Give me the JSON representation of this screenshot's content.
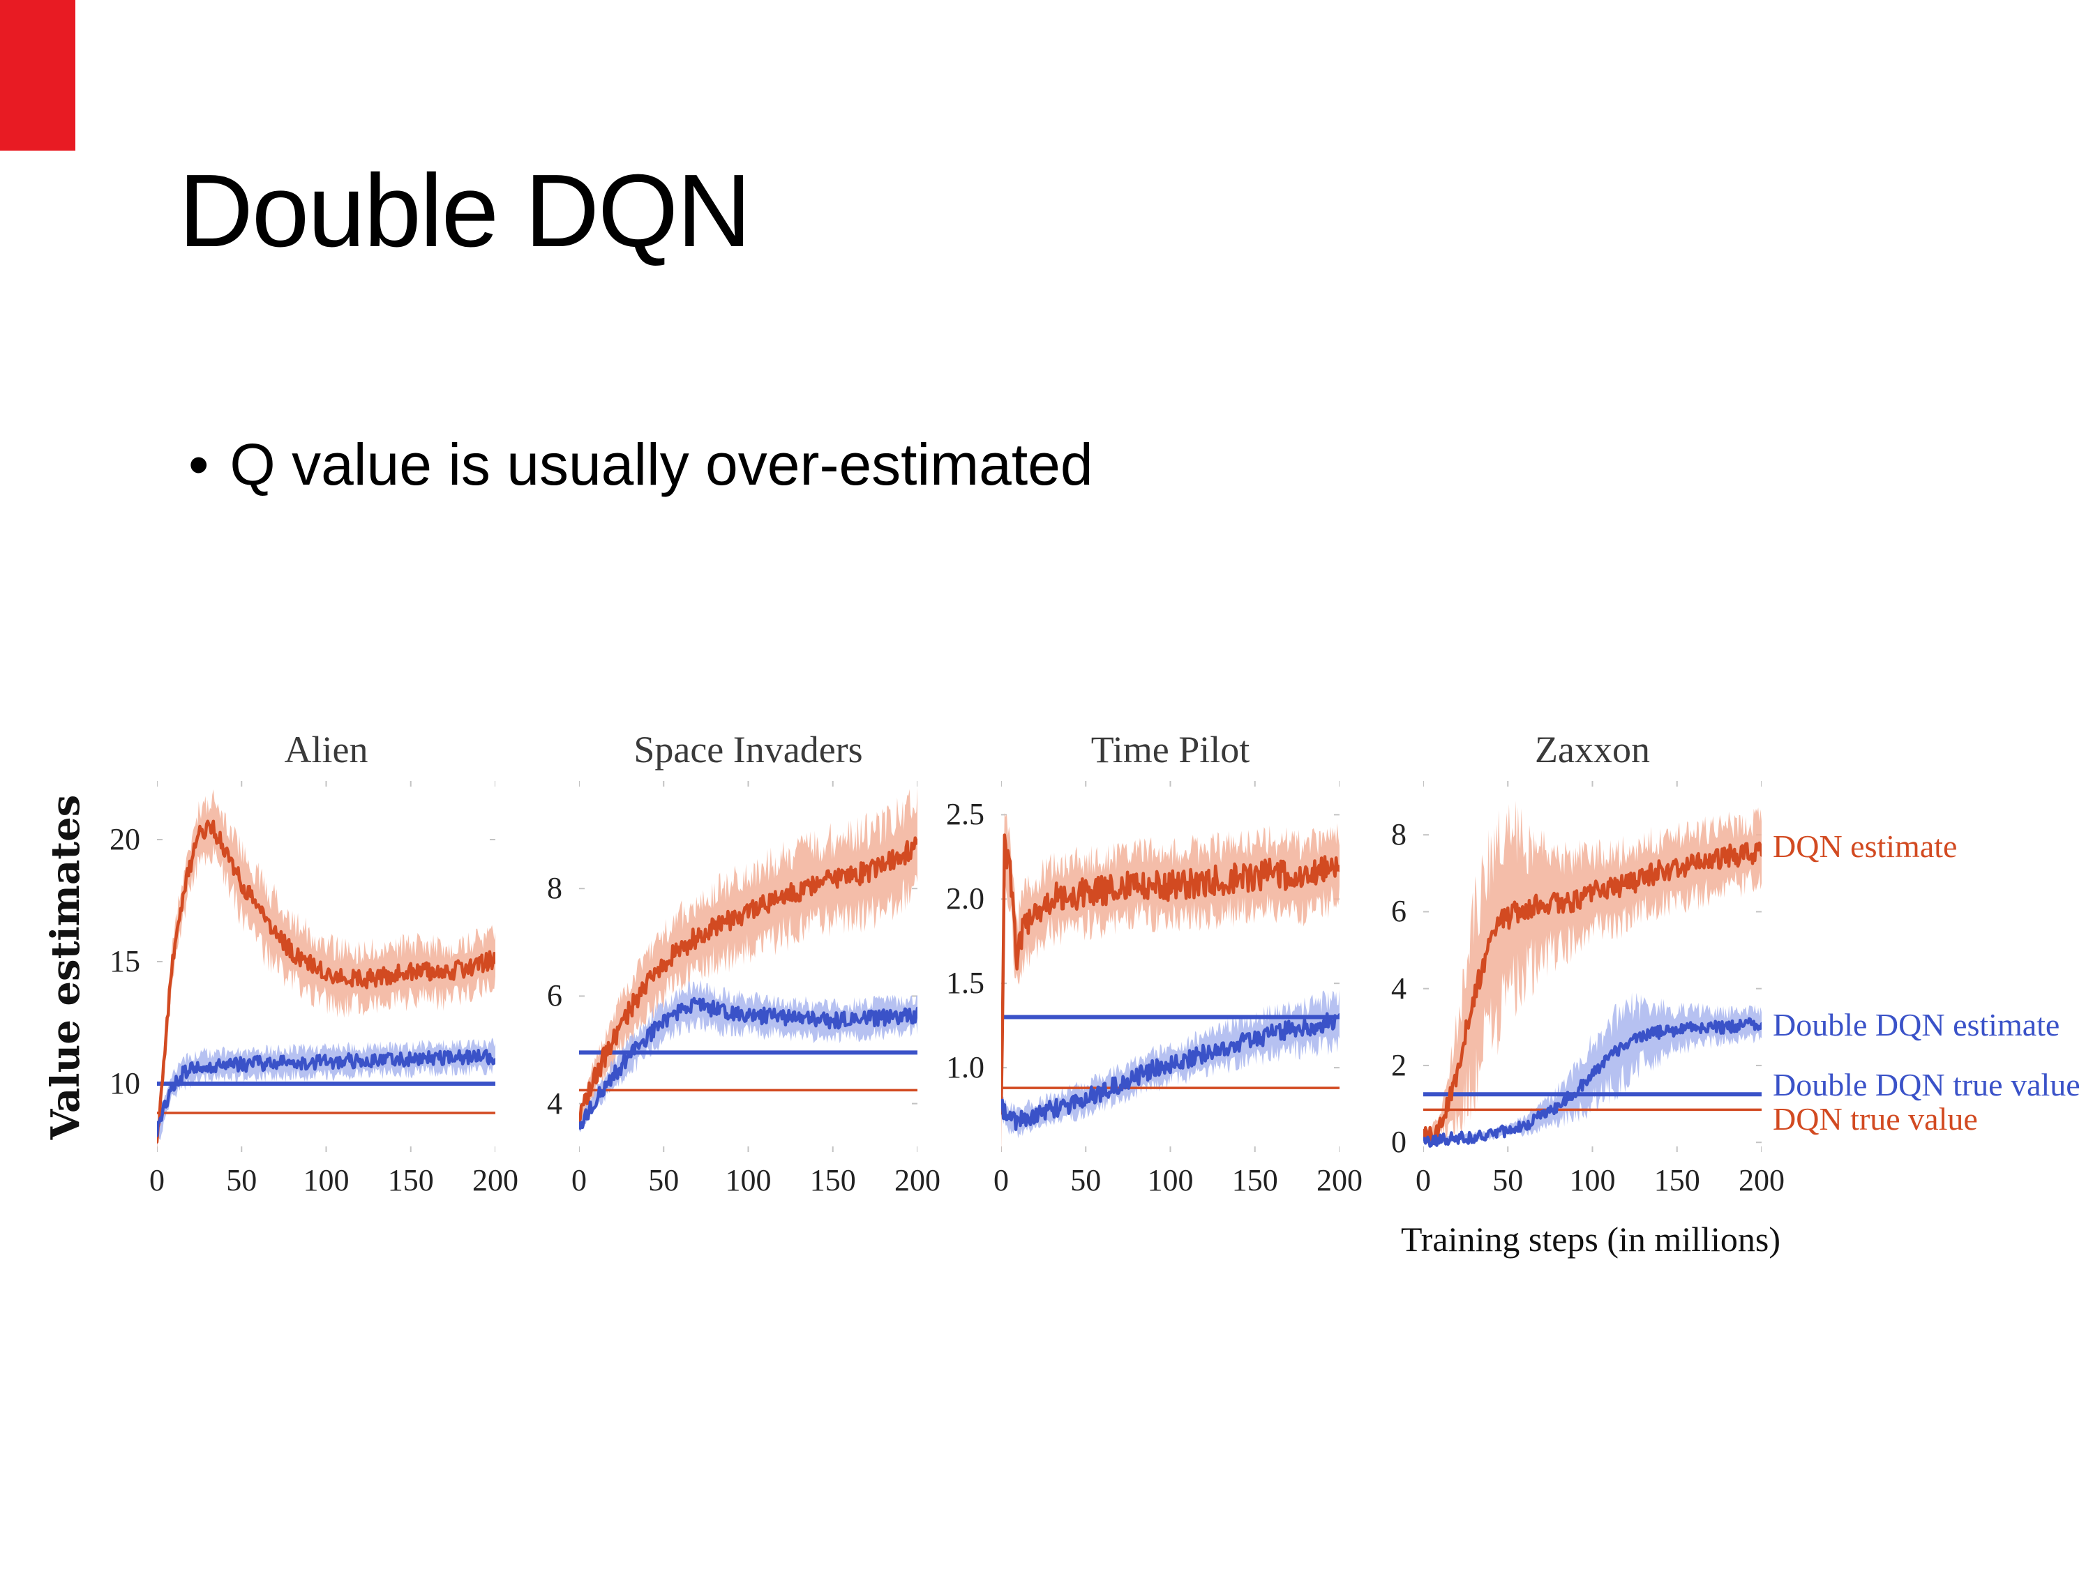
{
  "slide": {
    "title": "Double DQN",
    "bullet_glyph": "•",
    "bullet": "Q value is usually over-estimated",
    "accent_color": "#e81b23"
  },
  "figure": {
    "ylabel": "Value estimates",
    "xlabel": "Training steps (in millions)",
    "colors": {
      "dqn": "#d24a21",
      "ddqn": "#3a52c8",
      "dqn_band": "#f2b29a",
      "ddqn_band": "#a9b6ee",
      "tick": "#c3c3c3",
      "title_text": "#3a3a3a",
      "tick_text": "#222222"
    },
    "legend": [
      {
        "label": "DQN estimate",
        "color": "dqn",
        "anchor_value": 7.7
      },
      {
        "label": "Double DQN estimate",
        "color": "ddqn",
        "anchor_value": 3.05
      },
      {
        "label": "Double DQN true value",
        "color": "ddqn",
        "anchor_value": 1.5
      },
      {
        "label": "DQN true value",
        "color": "dqn",
        "anchor_value": 0.6
      }
    ]
  },
  "chart_data": [
    {
      "type": "line",
      "title": "Alien",
      "xlim": [
        0,
        200
      ],
      "ylim": [
        7.2,
        22.4
      ],
      "xticks": [
        0,
        50,
        100,
        150,
        200
      ],
      "ytick_values": [
        10,
        15,
        20
      ],
      "ytick_labels": [
        "10",
        "15",
        "20"
      ],
      "true_lines": [
        {
          "name": "DQN true value",
          "color": "dqn",
          "value": 8.8,
          "width": 3.5
        },
        {
          "name": "Double DQN true value",
          "color": "ddqn",
          "value": 10.0,
          "width": 6
        }
      ],
      "series": [
        {
          "name": "DQN estimate",
          "color": "dqn",
          "band_color": "dqn_band",
          "noise": 0.38,
          "seed": 11,
          "band": [
            [
              0,
              0.3
            ],
            [
              10,
              0.8
            ],
            [
              30,
              1.1
            ],
            [
              60,
              1.4
            ],
            [
              100,
              1.2
            ],
            [
              200,
              1.0
            ]
          ],
          "keypoints": [
            [
              0,
              7.6
            ],
            [
              4,
              11.0
            ],
            [
              10,
              15.5
            ],
            [
              18,
              18.5
            ],
            [
              25,
              20.2
            ],
            [
              32,
              20.6
            ],
            [
              40,
              19.6
            ],
            [
              50,
              18.2
            ],
            [
              65,
              16.6
            ],
            [
              80,
              15.4
            ],
            [
              95,
              14.7
            ],
            [
              110,
              14.3
            ],
            [
              125,
              14.3
            ],
            [
              140,
              14.5
            ],
            [
              155,
              14.6
            ],
            [
              170,
              14.5
            ],
            [
              185,
              14.8
            ],
            [
              200,
              15.1
            ]
          ]
        },
        {
          "name": "Double DQN estimate",
          "color": "ddqn",
          "band_color": "ddqn_band",
          "noise": 0.3,
          "seed": 12,
          "band": 0.55,
          "keypoints": [
            [
              0,
              8.0
            ],
            [
              8,
              9.8
            ],
            [
              15,
              10.4
            ],
            [
              25,
              10.7
            ],
            [
              50,
              10.8
            ],
            [
              100,
              10.9
            ],
            [
              150,
              11.0
            ],
            [
              200,
              11.1
            ]
          ]
        }
      ]
    },
    {
      "type": "line",
      "title": "Space Invaders",
      "xlim": [
        0,
        200
      ],
      "ylim": [
        3.1,
        10.0
      ],
      "xticks": [
        0,
        50,
        100,
        150,
        200
      ],
      "ytick_values": [
        4,
        6,
        8
      ],
      "ytick_labels": [
        "4",
        "6",
        "8"
      ],
      "true_lines": [
        {
          "name": "DQN true value",
          "color": "dqn",
          "value": 4.25,
          "width": 3.5
        },
        {
          "name": "Double DQN true value",
          "color": "ddqn",
          "value": 4.95,
          "width": 6
        }
      ],
      "series": [
        {
          "name": "DQN estimate",
          "color": "dqn",
          "band_color": "dqn_band",
          "noise": 0.2,
          "seed": 21,
          "band": [
            [
              0,
              0.15
            ],
            [
              20,
              0.45
            ],
            [
              50,
              0.6
            ],
            [
              100,
              0.7
            ],
            [
              150,
              0.75
            ],
            [
              200,
              0.8
            ]
          ],
          "keypoints": [
            [
              0,
              3.7
            ],
            [
              8,
              4.4
            ],
            [
              20,
              5.2
            ],
            [
              35,
              6.0
            ],
            [
              50,
              6.6
            ],
            [
              65,
              7.0
            ],
            [
              80,
              7.3
            ],
            [
              95,
              7.5
            ],
            [
              110,
              7.7
            ],
            [
              125,
              7.9
            ],
            [
              140,
              8.1
            ],
            [
              155,
              8.2
            ],
            [
              170,
              8.3
            ],
            [
              185,
              8.5
            ],
            [
              200,
              8.8
            ]
          ]
        },
        {
          "name": "Double DQN estimate",
          "color": "ddqn",
          "band_color": "ddqn_band",
          "noise": 0.15,
          "seed": 22,
          "band": [
            [
              0,
              0.12
            ],
            [
              30,
              0.3
            ],
            [
              60,
              0.35
            ],
            [
              120,
              0.3
            ],
            [
              200,
              0.3
            ]
          ],
          "keypoints": [
            [
              0,
              3.6
            ],
            [
              10,
              4.1
            ],
            [
              20,
              4.5
            ],
            [
              30,
              4.9
            ],
            [
              45,
              5.4
            ],
            [
              60,
              5.75
            ],
            [
              70,
              5.85
            ],
            [
              85,
              5.7
            ],
            [
              100,
              5.65
            ],
            [
              120,
              5.6
            ],
            [
              140,
              5.55
            ],
            [
              160,
              5.55
            ],
            [
              180,
              5.6
            ],
            [
              200,
              5.65
            ]
          ]
        }
      ]
    },
    {
      "type": "line",
      "title": "Time Pilot",
      "xlim": [
        0,
        200
      ],
      "ylim": [
        0.5,
        2.7
      ],
      "xticks": [
        0,
        50,
        100,
        150,
        200
      ],
      "ytick_values": [
        1.0,
        1.5,
        2.0,
        2.5
      ],
      "ytick_labels": [
        "1.0",
        "1.5",
        "2.0",
        "2.5"
      ],
      "true_lines": [
        {
          "name": "DQN true value",
          "color": "dqn",
          "value": 0.88,
          "width": 3.5
        },
        {
          "name": "Double DQN true value",
          "color": "ddqn",
          "value": 1.3,
          "width": 6
        }
      ],
      "series": [
        {
          "name": "DQN estimate",
          "color": "dqn",
          "band_color": "dqn_band",
          "noise": 0.09,
          "seed": 31,
          "band": 0.2,
          "keypoints": [
            [
              0,
              0.7
            ],
            [
              2,
              2.35
            ],
            [
              6,
              2.1
            ],
            [
              9,
              1.65
            ],
            [
              14,
              1.85
            ],
            [
              20,
              1.9
            ],
            [
              28,
              2.0
            ],
            [
              40,
              2.02
            ],
            [
              60,
              2.05
            ],
            [
              80,
              2.1
            ],
            [
              100,
              2.08
            ],
            [
              120,
              2.1
            ],
            [
              140,
              2.12
            ],
            [
              160,
              2.15
            ],
            [
              180,
              2.12
            ],
            [
              200,
              2.2
            ]
          ]
        },
        {
          "name": "Double DQN estimate",
          "color": "ddqn",
          "band_color": "ddqn_band",
          "noise": 0.055,
          "seed": 32,
          "band": [
            [
              0,
              0.07
            ],
            [
              100,
              0.1
            ],
            [
              200,
              0.14
            ]
          ],
          "keypoints": [
            [
              0,
              0.78
            ],
            [
              4,
              0.7
            ],
            [
              10,
              0.68
            ],
            [
              20,
              0.72
            ],
            [
              30,
              0.75
            ],
            [
              40,
              0.78
            ],
            [
              50,
              0.82
            ],
            [
              60,
              0.86
            ],
            [
              70,
              0.9
            ],
            [
              80,
              0.95
            ],
            [
              90,
              0.99
            ],
            [
              100,
              1.02
            ],
            [
              110,
              1.05
            ],
            [
              120,
              1.08
            ],
            [
              130,
              1.12
            ],
            [
              140,
              1.14
            ],
            [
              150,
              1.17
            ],
            [
              160,
              1.2
            ],
            [
              170,
              1.22
            ],
            [
              180,
              1.24
            ],
            [
              190,
              1.26
            ],
            [
              200,
              1.28
            ]
          ]
        }
      ]
    },
    {
      "type": "line",
      "title": "Zaxxon",
      "xlim": [
        0,
        200
      ],
      "ylim": [
        -0.25,
        9.4
      ],
      "xticks": [
        0,
        50,
        100,
        150,
        200
      ],
      "ytick_values": [
        0,
        2,
        4,
        6,
        8
      ],
      "ytick_labels": [
        "0",
        "2",
        "4",
        "6",
        "8"
      ],
      "true_lines": [
        {
          "name": "DQN true value",
          "color": "dqn",
          "value": 0.85,
          "width": 3.5
        },
        {
          "name": "Double DQN true value",
          "color": "ddqn",
          "value": 1.25,
          "width": 6
        }
      ],
      "series": [
        {
          "name": "DQN estimate",
          "color": "dqn",
          "band_color": "dqn_band",
          "noise": 0.3,
          "seed": 41,
          "band": [
            [
              0,
              0.05
            ],
            [
              12,
              0.4
            ],
            [
              20,
              1.2
            ],
            [
              30,
              2.2
            ],
            [
              42,
              2.4
            ],
            [
              55,
              2.0
            ],
            [
              70,
              1.4
            ],
            [
              85,
              1.1
            ],
            [
              110,
              0.95
            ],
            [
              140,
              0.85
            ],
            [
              200,
              0.8
            ]
          ],
          "keypoints": [
            [
              0,
              0.1
            ],
            [
              8,
              0.3
            ],
            [
              15,
              1.0
            ],
            [
              22,
              2.2
            ],
            [
              30,
              3.8
            ],
            [
              38,
              5.0
            ],
            [
              45,
              5.7
            ],
            [
              55,
              6.0
            ],
            [
              70,
              6.2
            ],
            [
              85,
              6.2
            ],
            [
              100,
              6.5
            ],
            [
              115,
              6.6
            ],
            [
              130,
              6.9
            ],
            [
              145,
              7.1
            ],
            [
              160,
              7.2
            ],
            [
              175,
              7.4
            ],
            [
              190,
              7.5
            ],
            [
              200,
              7.6
            ]
          ]
        },
        {
          "name": "Double DQN estimate",
          "color": "ddqn",
          "band_color": "ddqn_band",
          "noise": 0.16,
          "seed": 42,
          "band": [
            [
              0,
              0.04
            ],
            [
              50,
              0.12
            ],
            [
              75,
              0.35
            ],
            [
              90,
              0.6
            ],
            [
              105,
              0.85
            ],
            [
              120,
              0.9
            ],
            [
              135,
              0.7
            ],
            [
              150,
              0.5
            ],
            [
              170,
              0.4
            ],
            [
              200,
              0.35
            ]
          ],
          "keypoints": [
            [
              0,
              0.05
            ],
            [
              20,
              0.1
            ],
            [
              40,
              0.2
            ],
            [
              60,
              0.45
            ],
            [
              75,
              0.8
            ],
            [
              90,
              1.3
            ],
            [
              100,
              1.8
            ],
            [
              110,
              2.2
            ],
            [
              120,
              2.6
            ],
            [
              130,
              2.8
            ],
            [
              145,
              2.9
            ],
            [
              160,
              3.0
            ],
            [
              180,
              3.0
            ],
            [
              200,
              3.1
            ]
          ]
        }
      ]
    }
  ]
}
